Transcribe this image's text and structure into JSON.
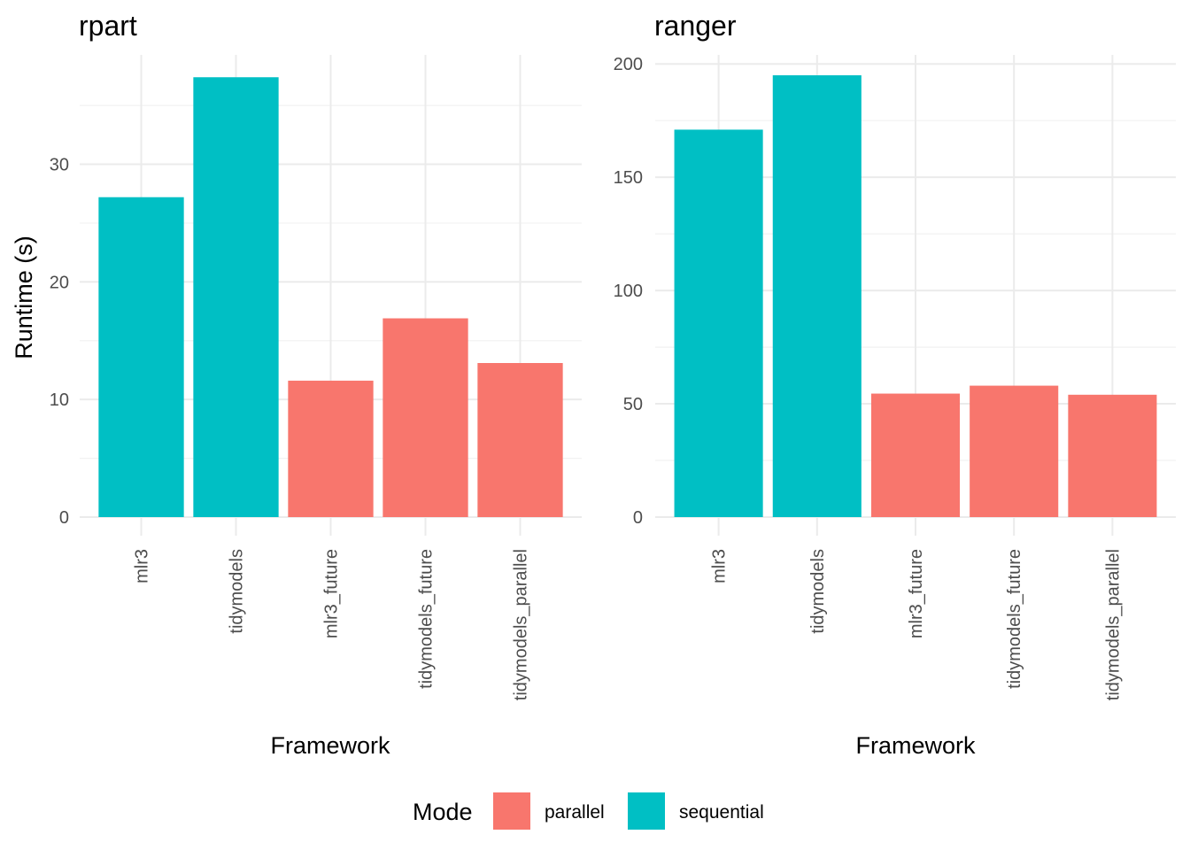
{
  "chart_data": [
    {
      "type": "bar",
      "title": "rpart",
      "xlabel": "Framework",
      "ylabel": "Runtime (s)",
      "categories": [
        "mlr3",
        "tidymodels",
        "mlr3_future",
        "tidymodels_future",
        "tidymodels_parallel"
      ],
      "values": [
        27.2,
        37.4,
        11.6,
        16.9,
        13.1
      ],
      "modes": [
        "sequential",
        "sequential",
        "parallel",
        "parallel",
        "parallel"
      ],
      "ylim": [
        0,
        39.3
      ],
      "yticks": [
        0,
        10,
        20,
        30
      ],
      "grid": true
    },
    {
      "type": "bar",
      "title": "ranger",
      "xlabel": "Framework",
      "ylabel": "",
      "categories": [
        "mlr3",
        "tidymodels",
        "mlr3_future",
        "tidymodels_future",
        "tidymodels_parallel"
      ],
      "values": [
        171,
        195,
        54.5,
        58,
        54
      ],
      "modes": [
        "sequential",
        "sequential",
        "parallel",
        "parallel",
        "parallel"
      ],
      "ylim": [
        0,
        204
      ],
      "yticks": [
        0,
        50,
        100,
        150,
        200
      ],
      "grid": true
    }
  ],
  "legend": {
    "title": "Mode",
    "position": "bottom",
    "items": [
      {
        "key": "parallel",
        "label": "parallel",
        "color": "#F8766D"
      },
      {
        "key": "sequential",
        "label": "sequential",
        "color": "#00BFC4"
      }
    ]
  }
}
